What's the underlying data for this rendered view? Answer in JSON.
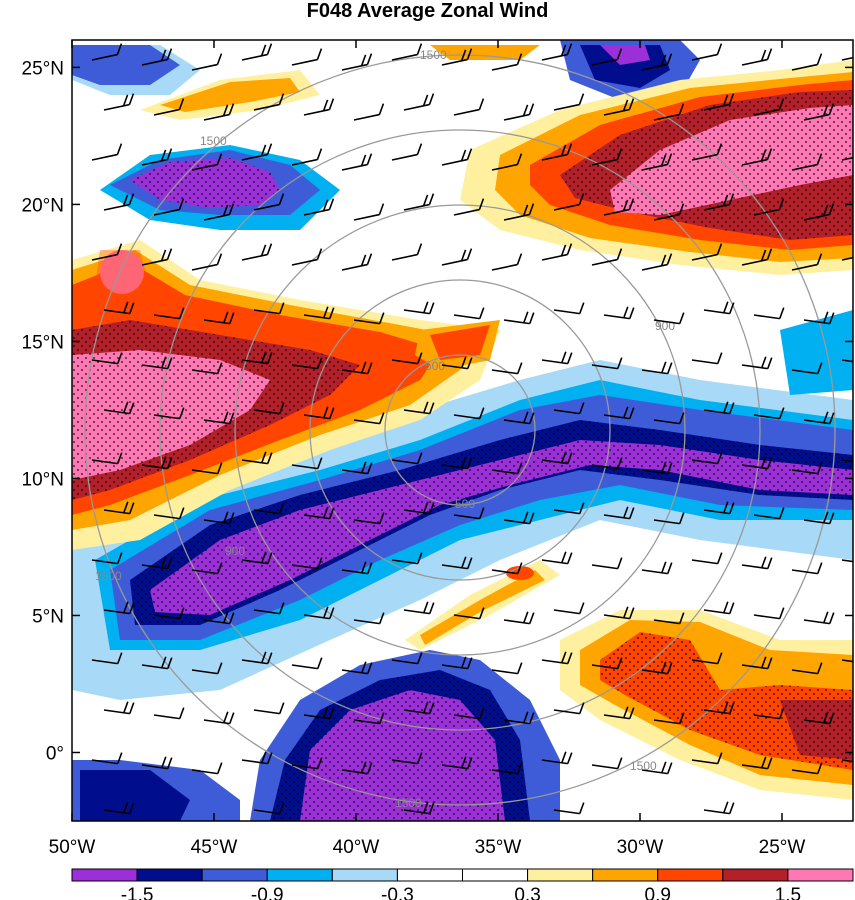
{
  "title": "F048 Average Zonal Wind",
  "map": {
    "lat_range": [
      -2.5,
      26
    ],
    "lon_range": [
      -50,
      -22.5
    ],
    "lat_ticks": [
      {
        "value": 25,
        "label": "25°N"
      },
      {
        "value": 20,
        "label": "20°N"
      },
      {
        "value": 15,
        "label": "15°N"
      },
      {
        "value": 10,
        "label": "10°N"
      },
      {
        "value": 5,
        "label": "5°N"
      },
      {
        "value": 0,
        "label": "0°"
      }
    ],
    "lon_ticks": [
      {
        "value": -50,
        "label": "50°W"
      },
      {
        "value": -45,
        "label": "45°W"
      },
      {
        "value": -40,
        "label": "40°W"
      },
      {
        "value": -35,
        "label": "35°W"
      },
      {
        "value": -30,
        "label": "30°W"
      },
      {
        "value": -25,
        "label": "25°W"
      }
    ],
    "stippling": true,
    "wind_barbs": true,
    "range_rings": {
      "center": {
        "lon": -35,
        "lat": 12
      },
      "labels": [
        "500",
        "900",
        "1500"
      ]
    }
  },
  "colorbar": {
    "levels": [
      -1.5,
      -1.2,
      -0.9,
      -0.6,
      -0.3,
      0,
      0.3,
      0.6,
      0.9,
      1.2,
      1.5
    ],
    "colors": [
      "#9b30d9",
      "#000e8e",
      "#3e5cd8",
      "#00b0f0",
      "#a8daf7",
      "#ffffff",
      "#ffffff",
      "#fff0a0",
      "#ffa500",
      "#ff4500",
      "#b3202a",
      "#ff78b4"
    ],
    "tick_labels": [
      {
        "value": -1.5,
        "label": "-1.5"
      },
      {
        "value": -0.9,
        "label": "-0.9"
      },
      {
        "value": -0.3,
        "label": "-0.3"
      },
      {
        "value": 0.3,
        "label": "0.3"
      },
      {
        "value": 0.9,
        "label": "0.9"
      },
      {
        "value": 1.5,
        "label": "1.5"
      }
    ]
  }
}
